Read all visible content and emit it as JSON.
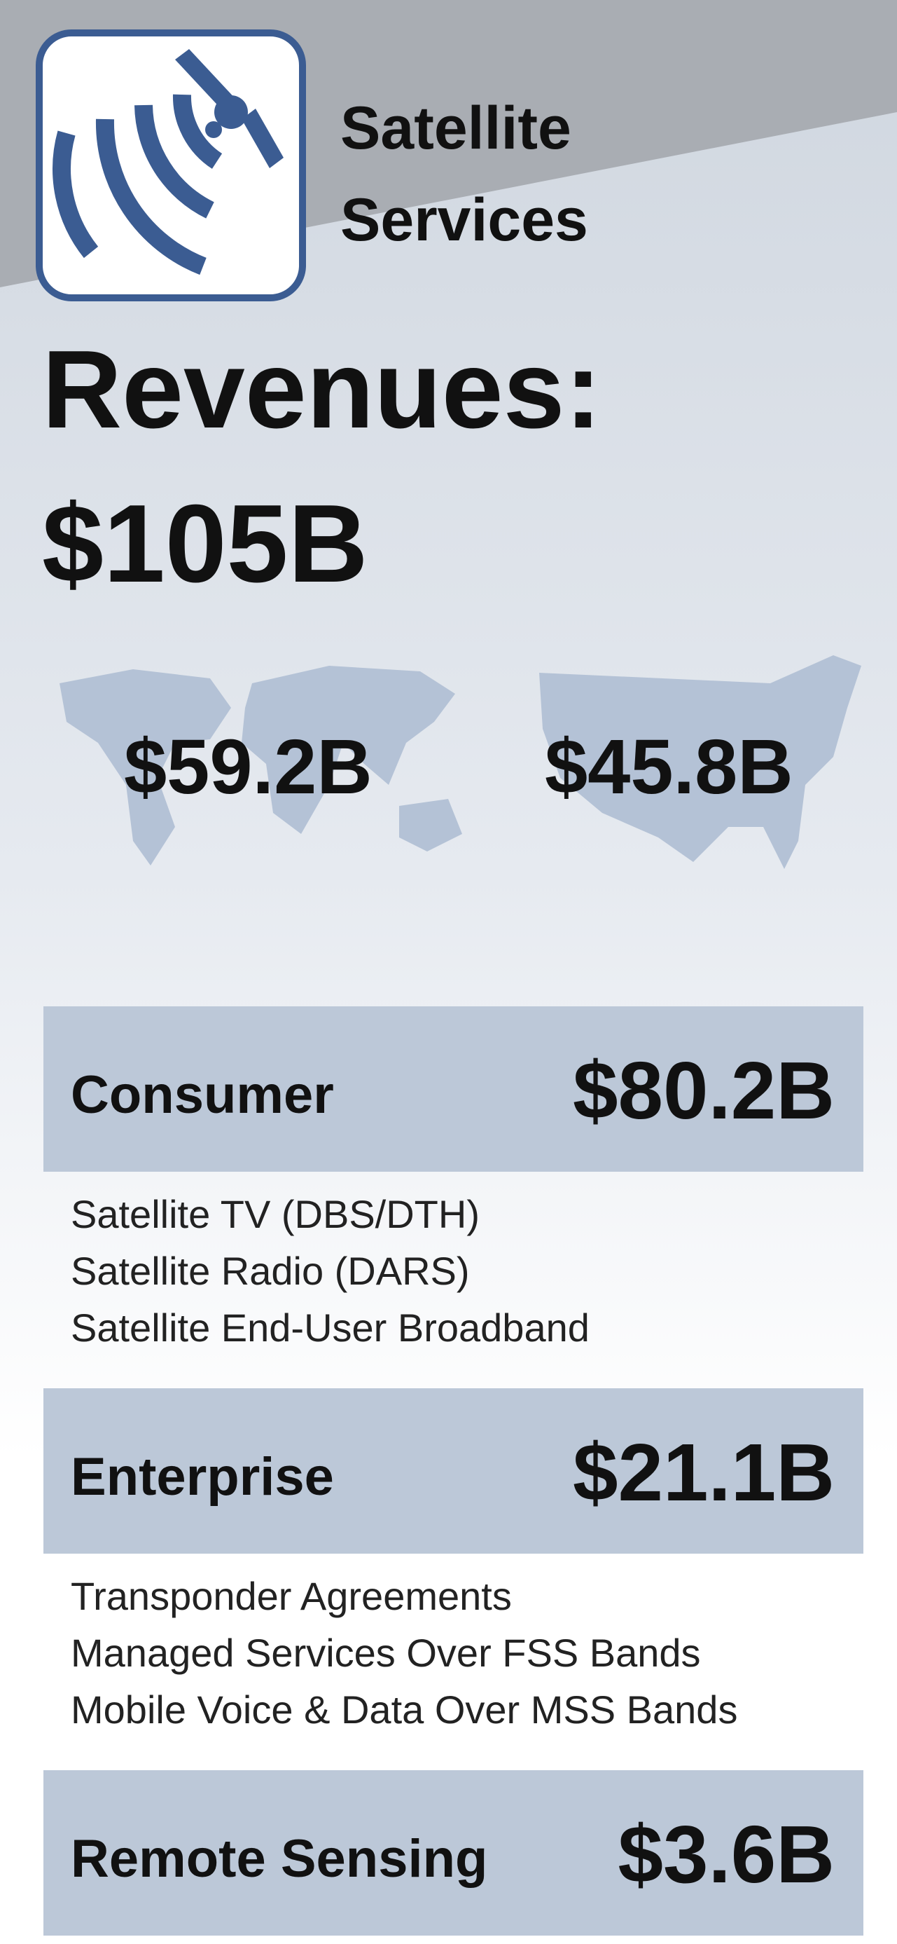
{
  "header": {
    "title_lines": [
      "Satellite",
      "Services"
    ]
  },
  "revenues": {
    "label": "Revenues:",
    "total": "$105B"
  },
  "regions": [
    {
      "value": "$59.2B"
    },
    {
      "value": "$45.8B"
    }
  ],
  "segments": [
    {
      "name": "Consumer",
      "value": "$80.2B",
      "items": [
        "Satellite TV (DBS/DTH)",
        "Satellite Radio (DARS)",
        "Satellite End-User Broadband"
      ]
    },
    {
      "name": "Enterprise",
      "value": "$21.1B",
      "items": [
        "Transponder Agreements",
        "Managed Services Over FSS Bands",
        "Mobile Voice & Data Over MSS Bands"
      ]
    },
    {
      "name": "Remote Sensing",
      "value": "$3.6B",
      "items": []
    }
  ]
}
